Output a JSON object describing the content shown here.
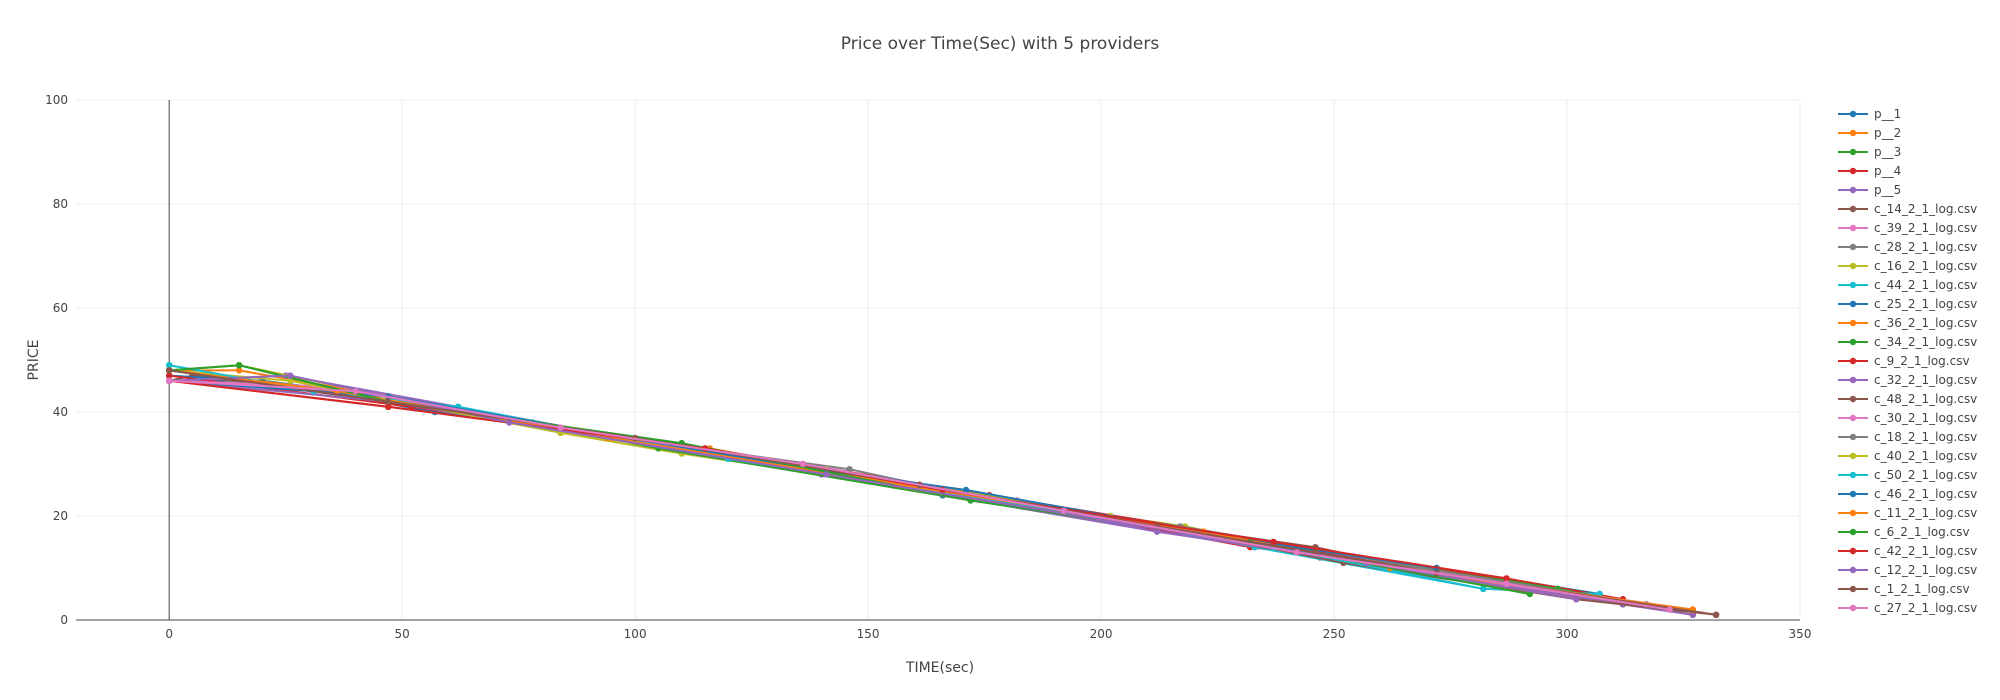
{
  "chart_data": {
    "type": "line",
    "title": "Price over Time(Sec) with 5 providers",
    "xlabel": "TIME(sec)",
    "ylabel": "PRICE",
    "xlim": [
      -20,
      350
    ],
    "ylim": [
      0,
      100
    ],
    "xticks": [
      0,
      50,
      100,
      150,
      200,
      250,
      300,
      350
    ],
    "yticks": [
      0,
      20,
      40,
      60,
      80,
      100
    ],
    "grid": true,
    "legend_position": "right",
    "series": [
      {
        "name": "p__1",
        "color": "#1f77b4",
        "x": [
          0,
          15,
          20,
          47,
          125,
          166,
          267,
          272,
          307
        ],
        "y": [
          46,
          46,
          46,
          43,
          31,
          24,
          9,
          10,
          5
        ]
      },
      {
        "name": "p__2",
        "color": "#ff7f0e",
        "x": [
          0,
          15,
          47,
          90,
          116,
          158,
          222,
          262,
          307,
          327
        ],
        "y": [
          48,
          48,
          43,
          36,
          33,
          26,
          17,
          10,
          4,
          2
        ]
      },
      {
        "name": "p__3",
        "color": "#2ca02c",
        "x": [
          0,
          15,
          47,
          78,
          110,
          172,
          232,
          272,
          298
        ],
        "y": [
          48,
          49,
          42,
          38,
          34,
          23,
          15,
          10,
          6
        ]
      },
      {
        "name": "p__4",
        "color": "#d62728",
        "x": [
          0,
          47,
          73,
          136,
          232,
          287,
          312
        ],
        "y": [
          46,
          41,
          38,
          30,
          14,
          8,
          4
        ]
      },
      {
        "name": "p__5",
        "color": "#9467bd",
        "x": [
          0,
          25,
          62,
          140,
          212,
          250
        ],
        "y": [
          46,
          47,
          41,
          28,
          17,
          12
        ]
      },
      {
        "name": "c_14_2_1_log.csv",
        "color": "#8c564b",
        "x": [
          0,
          5,
          47,
          110,
          161,
          207,
          246,
          272,
          327
        ],
        "y": [
          46,
          47,
          42,
          33,
          26,
          19,
          14,
          9,
          1
        ]
      },
      {
        "name": "c_39_2_1_log.csv",
        "color": "#e377c2",
        "x": [
          0,
          40,
          89,
          136,
          182,
          232,
          287,
          327
        ],
        "y": [
          46,
          44,
          36,
          30,
          23,
          15,
          7,
          2
        ]
      },
      {
        "name": "c_28_2_1_log.csv",
        "color": "#7f7f7f",
        "x": [
          0,
          41,
          100,
          145,
          202,
          247,
          307,
          327
        ],
        "y": [
          48,
          43,
          34,
          28,
          20,
          12,
          4,
          2
        ]
      },
      {
        "name": "c_16_2_1_log.csv",
        "color": "#bcbd22",
        "x": [
          0,
          15,
          84,
          110,
          156,
          218,
          262,
          307
        ],
        "y": [
          48,
          49,
          36,
          32,
          26,
          18,
          10,
          4
        ]
      },
      {
        "name": "c_44_2_1_log.csv",
        "color": "#17becf",
        "x": [
          0,
          31,
          62,
          115,
          156,
          187,
          233,
          282,
          307
        ],
        "y": [
          49,
          44,
          41,
          32,
          26,
          22,
          14,
          6,
          5
        ]
      },
      {
        "name": "c_25_2_1_log.csv",
        "color": "#1f77b4",
        "x": [
          0,
          20,
          57,
          126,
          166,
          226,
          282,
          312
        ],
        "y": [
          47,
          46,
          40,
          31,
          24,
          16,
          7,
          3
        ]
      },
      {
        "name": "c_36_2_1_log.csv",
        "color": "#ff7f0e",
        "x": [
          0,
          47,
          94,
          151,
          197,
          262,
          312,
          327
        ],
        "y": [
          48,
          43,
          35,
          27,
          20,
          10,
          3,
          2
        ]
      },
      {
        "name": "c_34_2_1_log.csv",
        "color": "#2ca02c",
        "x": [
          0,
          36,
          83,
          105,
          172,
          232,
          298,
          322
        ],
        "y": [
          48,
          44,
          37,
          33,
          23,
          15,
          6,
          2
        ]
      },
      {
        "name": "c_9_2_1_log.csv",
        "color": "#d62728",
        "x": [
          0,
          52,
          115,
          176,
          237,
          277,
          302,
          327
        ],
        "y": [
          47,
          41,
          33,
          24,
          15,
          8,
          5,
          1
        ]
      },
      {
        "name": "c_32_2_1_log.csv",
        "color": "#9467bd",
        "x": [
          0,
          47,
          120,
          172,
          212,
          257,
          312,
          327
        ],
        "y": [
          46,
          42,
          31,
          24,
          17,
          11,
          3,
          1
        ]
      },
      {
        "name": "c_48_2_1_log.csv",
        "color": "#8c564b",
        "x": [
          0,
          47,
          105,
          156,
          207,
          252,
          302,
          332
        ],
        "y": [
          48,
          42,
          34,
          26,
          19,
          11,
          4,
          1
        ]
      },
      {
        "name": "c_30_2_1_log.csv",
        "color": "#e377c2",
        "x": [
          0,
          31,
          68,
          126,
          172,
          222,
          262,
          317
        ],
        "y": [
          46,
          45,
          39,
          31,
          23,
          17,
          10,
          3
        ]
      },
      {
        "name": "c_18_2_1_log.csv",
        "color": "#7f7f7f",
        "x": [
          0,
          36,
          89,
          146,
          182,
          217,
          262,
          317
        ],
        "y": [
          48,
          44,
          36,
          29,
          22,
          18,
          11,
          3
        ]
      },
      {
        "name": "c_40_2_1_log.csv",
        "color": "#bcbd22",
        "x": [
          0,
          26,
          84,
          141,
          202,
          257,
          292
        ],
        "y": [
          48,
          46,
          36,
          29,
          20,
          11,
          5
        ]
      },
      {
        "name": "c_50_2_1_log.csv",
        "color": "#17becf",
        "x": [
          0,
          31,
          62,
          120,
          192,
          237,
          282
        ],
        "y": [
          49,
          44,
          41,
          31,
          21,
          14,
          6
        ]
      },
      {
        "name": "c_46_2_1_log.csv",
        "color": "#1f77b4",
        "x": [
          0,
          47,
          131,
          171,
          227,
          272
        ],
        "y": [
          46,
          43,
          30,
          25,
          16,
          10
        ]
      },
      {
        "name": "c_11_2_1_log.csv",
        "color": "#ff7f0e",
        "x": [
          0,
          36,
          95,
          157,
          222,
          262,
          327
        ],
        "y": [
          48,
          44,
          35,
          26,
          17,
          10,
          2
        ]
      },
      {
        "name": "c_6_2_1_log.csv",
        "color": "#2ca02c",
        "x": [
          0,
          15,
          47,
          110,
          172,
          232,
          292
        ],
        "y": [
          48,
          49,
          42,
          34,
          23,
          15,
          5
        ]
      },
      {
        "name": "c_42_2_1_log.csv",
        "color": "#d62728",
        "x": [
          0,
          47,
          115,
          166,
          237,
          287
        ],
        "y": [
          46,
          41,
          33,
          25,
          15,
          8
        ]
      },
      {
        "name": "c_12_2_1_log.csv",
        "color": "#9467bd",
        "x": [
          0,
          26,
          73,
          141,
          202,
          257,
          302
        ],
        "y": [
          46,
          47,
          38,
          28,
          19,
          11,
          4
        ]
      },
      {
        "name": "c_1_2_1_log.csv",
        "color": "#8c564b",
        "x": [
          0,
          47,
          100,
          161,
          212,
          246,
          272,
          332
        ],
        "y": [
          48,
          42,
          35,
          26,
          18,
          13,
          9,
          1
        ]
      },
      {
        "name": "c_27_2_1_log.csv",
        "color": "#e377c2",
        "x": [
          0,
          40,
          84,
          136,
          192,
          242,
          287,
          322
        ],
        "y": [
          46,
          44,
          37,
          30,
          21,
          13,
          7,
          2
        ]
      }
    ]
  }
}
